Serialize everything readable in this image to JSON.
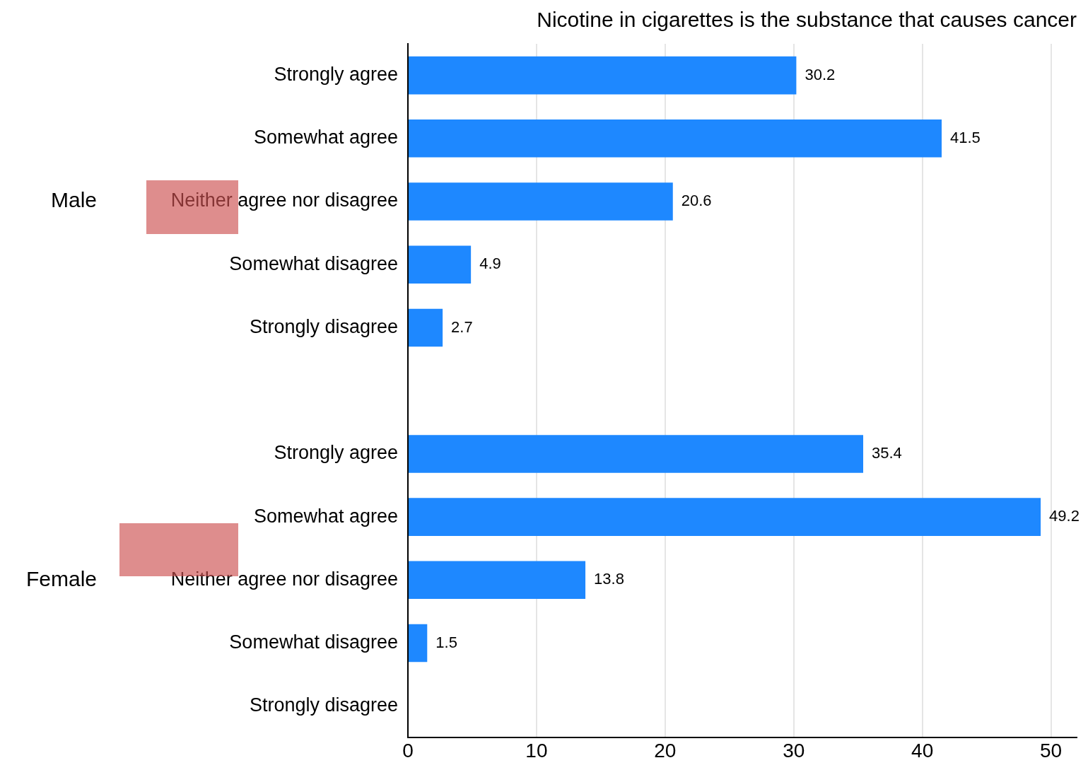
{
  "chart_data": {
    "type": "bar",
    "orientation": "horizontal",
    "title": "Nicotine in cigarettes is the substance that causes cancer",
    "categories": [
      "Strongly agree",
      "Somewhat agree",
      "Neither agree nor disagree",
      "Somewhat disagree",
      "Strongly disagree",
      null,
      "Strongly agree",
      "Somewhat agree",
      "Neither agree nor disagree",
      "Somewhat disagree",
      "Strongly disagree"
    ],
    "values": [
      30.2,
      41.5,
      20.6,
      4.9,
      2.7,
      null,
      35.4,
      49.2,
      13.8,
      1.5,
      null
    ],
    "color": "#1e88ff",
    "xlim": [
      0,
      52
    ],
    "xticks": [
      0,
      10,
      20,
      30,
      40,
      50
    ],
    "grid": "x",
    "legend": false,
    "data_labels": true,
    "annotations": [
      "Male",
      "Female"
    ]
  }
}
